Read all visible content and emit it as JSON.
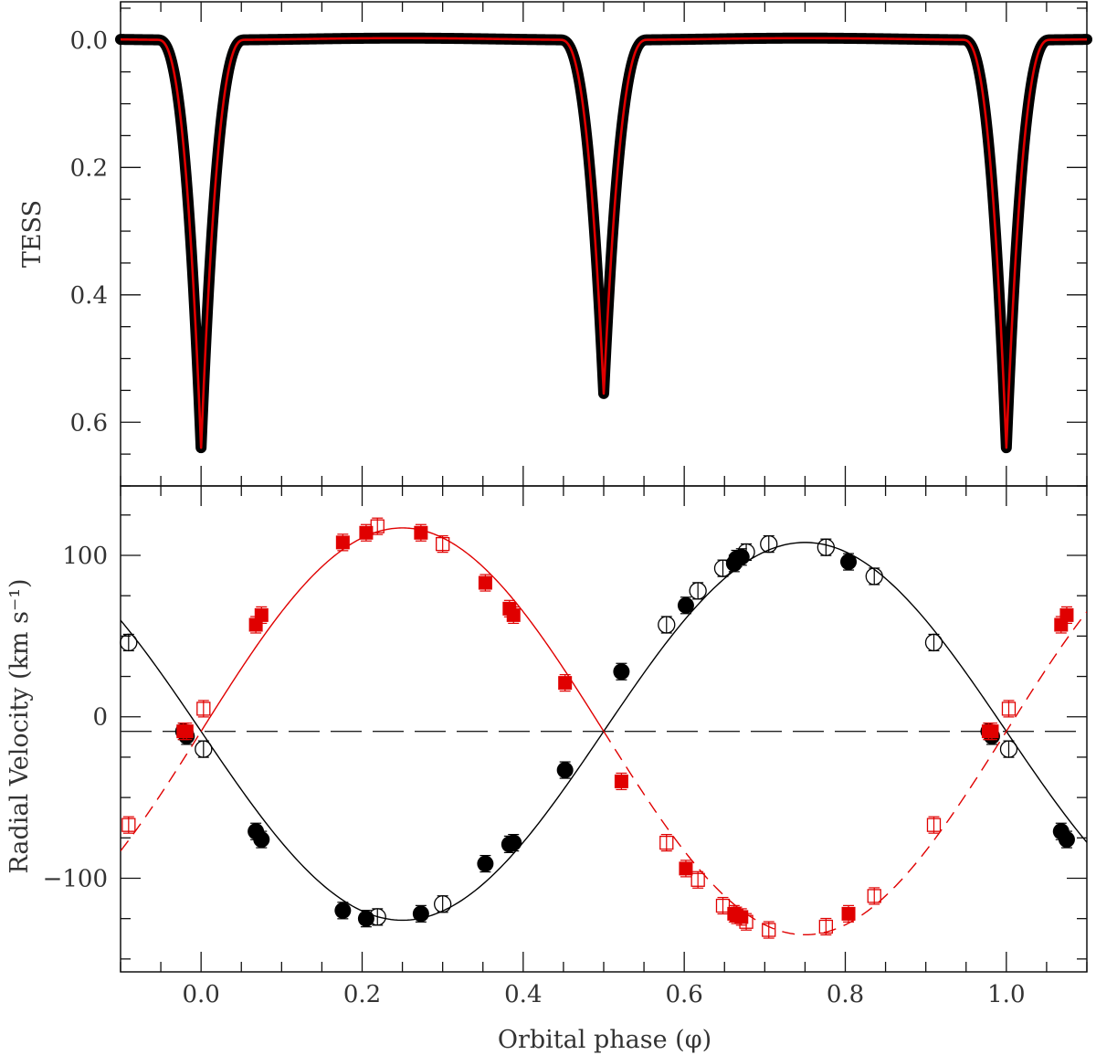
{
  "chart_data": [
    {
      "type": "line",
      "ylabel": "TESS",
      "xlabel": "",
      "xlim": [
        -0.1,
        1.1
      ],
      "ylim": [
        0.7,
        -0.06
      ],
      "y_inverted": true,
      "x_ticks": [
        "0.0",
        "0.2",
        "0.4",
        "0.6",
        "0.8",
        "1.0"
      ],
      "y_ticks": [
        {
          "value": 0.0,
          "label": "0.0"
        },
        {
          "value": 0.2,
          "label": "0.2"
        },
        {
          "value": 0.4,
          "label": "0.4"
        },
        {
          "value": 0.6,
          "label": "0.6"
        }
      ],
      "eclipses": [
        {
          "phase": 0.0,
          "depth": 0.64,
          "half_width": 0.054
        },
        {
          "phase": 0.5,
          "depth": 0.555,
          "half_width": 0.054
        },
        {
          "phase": 1.0,
          "depth": 0.64,
          "half_width": 0.054
        }
      ],
      "series": [
        {
          "role": "observed",
          "color": "#000000"
        },
        {
          "role": "model",
          "color": "#e00000"
        }
      ]
    },
    {
      "type": "scatter",
      "xlabel": "Orbital phase (φ)",
      "ylabel": "Radial Velocity (km s⁻¹)",
      "xlim": [
        -0.1,
        1.1
      ],
      "ylim": [
        -158,
        143
      ],
      "x_ticks": [
        "0.0",
        "0.2",
        "0.4",
        "0.6",
        "0.8",
        "1.0"
      ],
      "y_ticks": [
        {
          "value": -100,
          "label": "−100"
        },
        {
          "value": 0,
          "label": "0"
        },
        {
          "value": 100,
          "label": "100"
        }
      ],
      "systemic_velocity": -9,
      "curves": [
        {
          "role": "primary",
          "color": "#000000",
          "gamma": -9,
          "K": 117,
          "phase_offset": 0.0,
          "style": "solid"
        },
        {
          "role": "secondary",
          "color": "#e00000",
          "gamma": -9,
          "K": 126,
          "phase_offset": 0.5,
          "style": "solid",
          "dashed_outside": [
            0.5,
            1.0
          ]
        }
      ],
      "series": [
        {
          "marker": "filled-circle",
          "color": "#000000",
          "x": [
            -0.022,
            -0.018,
            0.068,
            0.075,
            0.176,
            0.205,
            0.273,
            0.353,
            0.383,
            0.388,
            0.452,
            0.522,
            0.602,
            0.662,
            0.665,
            0.671,
            0.804,
            0.978,
            0.982,
            1.068,
            1.075
          ],
          "y": [
            -9,
            -12,
            -71,
            -76,
            -120,
            -125,
            -122,
            -91,
            -79,
            -78,
            -33,
            28,
            69,
            95,
            98,
            99,
            96,
            -9,
            -12,
            -71,
            -76
          ]
        },
        {
          "marker": "open-circle",
          "color": "#000000",
          "x": [
            -0.09,
            0.003,
            0.219,
            0.3,
            0.578,
            0.617,
            0.648,
            0.677,
            0.705,
            0.776,
            0.836,
            0.91,
            1.003
          ],
          "y": [
            46,
            -20,
            -124,
            -116,
            57,
            78,
            92,
            102,
            107,
            105,
            87,
            46,
            -20
          ]
        },
        {
          "marker": "filled-square",
          "color": "#e00000",
          "x": [
            -0.022,
            -0.018,
            0.068,
            0.075,
            0.176,
            0.205,
            0.273,
            0.353,
            0.383,
            0.388,
            0.452,
            0.522,
            0.602,
            0.662,
            0.665,
            0.671,
            0.804,
            0.978,
            0.982,
            1.068,
            1.075
          ],
          "y": [
            -9,
            -9,
            57,
            63,
            108,
            114,
            114,
            83,
            67,
            63,
            21,
            -40,
            -94,
            -122,
            -123,
            -124,
            -122,
            -9,
            -9,
            57,
            63
          ]
        },
        {
          "marker": "open-square",
          "color": "#e00000",
          "x": [
            -0.09,
            0.003,
            0.219,
            0.3,
            0.578,
            0.617,
            0.648,
            0.677,
            0.705,
            0.776,
            0.836,
            0.91,
            1.003
          ],
          "y": [
            -67,
            5,
            118,
            107,
            -78,
            -101,
            -117,
            -127,
            -132,
            -130,
            -111,
            -67,
            5
          ]
        }
      ]
    }
  ]
}
